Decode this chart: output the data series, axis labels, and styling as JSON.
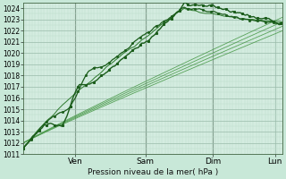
{
  "title": "",
  "xlabel": "Pression niveau de la mer( hPa )",
  "bg_color": "#c8e8d8",
  "plot_bg_color": "#d4ece0",
  "grid_major_color": "#99bbaa",
  "grid_minor_color": "#bbddcc",
  "line_dark": "#1a5c1a",
  "line_medium": "#2d7a2d",
  "line_light": "#4a9a4a",
  "ylim": [
    1011,
    1024.5
  ],
  "xlim": [
    0,
    1
  ],
  "day_labels": [
    "Ven",
    "Sam",
    "Dim",
    "Lun"
  ],
  "day_positions": [
    0.2,
    0.47,
    0.73,
    0.97
  ],
  "vline_positions": [
    0.2,
    0.47,
    0.73
  ],
  "num_points": 400
}
